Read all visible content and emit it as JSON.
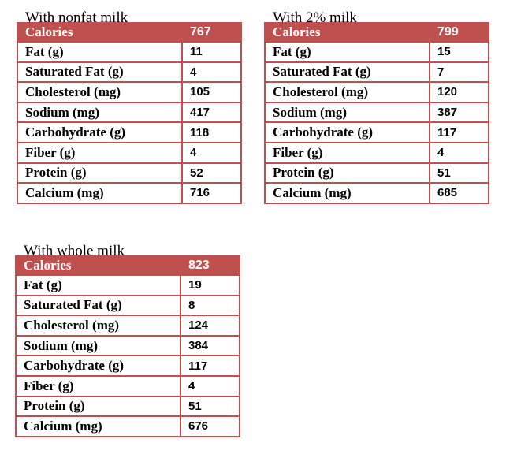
{
  "tables": [
    {
      "title": "With nonfat milk",
      "header": [
        "Calories",
        767
      ],
      "rows": [
        [
          "Fat (g)",
          11
        ],
        [
          "Saturated Fat (g)",
          4
        ],
        [
          "Cholesterol (mg)",
          105
        ],
        [
          "Sodium (mg)",
          417
        ],
        [
          "Carbohydrate (g)",
          118
        ],
        [
          "Fiber (g)",
          4
        ],
        [
          "Protein (g)",
          52
        ],
        [
          "Calcium (mg)",
          716
        ]
      ]
    },
    {
      "title": "With 2% milk",
      "header": [
        "Calories",
        799
      ],
      "rows": [
        [
          "Fat (g)",
          15
        ],
        [
          "Saturated Fat (g)",
          7
        ],
        [
          "Cholesterol (mg)",
          120
        ],
        [
          "Sodium (mg)",
          387
        ],
        [
          "Carbohydrate (g)",
          117
        ],
        [
          "Fiber (g)",
          4
        ],
        [
          "Protein (g)",
          51
        ],
        [
          "Calcium (mg)",
          685
        ]
      ]
    },
    {
      "title": "With whole milk",
      "header": [
        "Calories",
        823
      ],
      "rows": [
        [
          "Fat (g)",
          19
        ],
        [
          "Saturated Fat (g)",
          8
        ],
        [
          "Cholesterol (mg)",
          124
        ],
        [
          "Sodium (mg)",
          384
        ],
        [
          "Carbohydrate (g)",
          117
        ],
        [
          "Fiber (g)",
          4
        ],
        [
          "Protein (g)",
          51
        ],
        [
          "Calcium (mg)",
          676
        ]
      ]
    }
  ]
}
